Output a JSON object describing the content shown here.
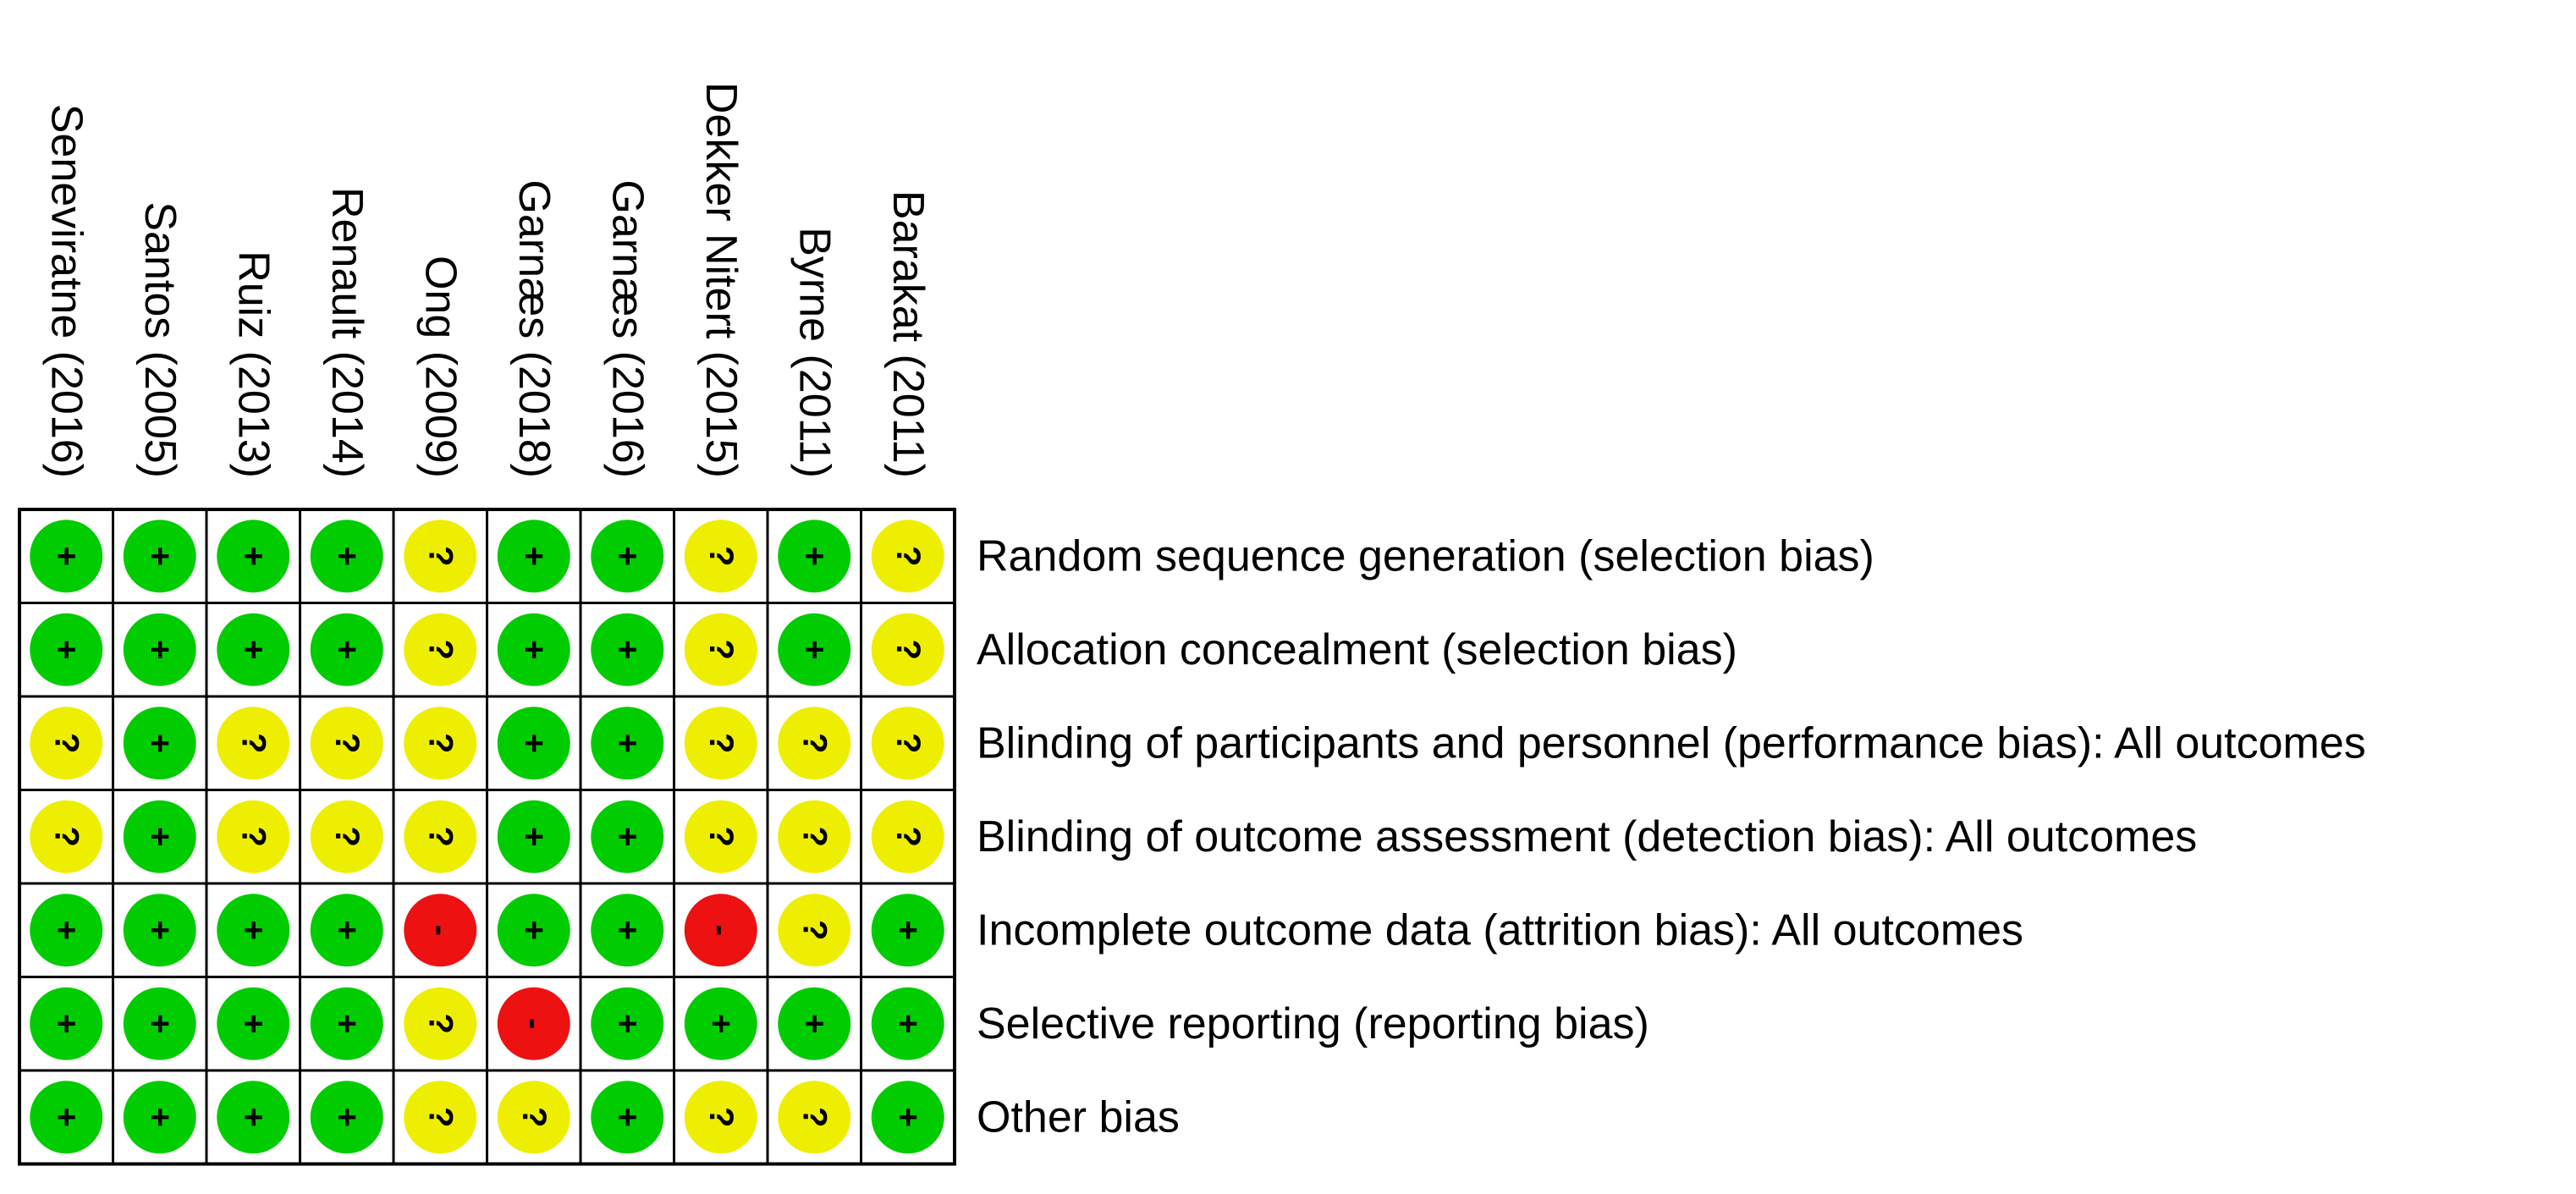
{
  "studies": [
    "Seneviratne (2016)",
    "Santos (2005)",
    "Ruiz (2013)",
    "Renault (2014)",
    "Ong (2009)",
    "Garnæs (2018)",
    "Garnæs (2016)",
    "Dekker Nitert (2015)",
    "Byrne (2011)",
    "Barakat (2011)"
  ],
  "judgment_colors": {
    "+": "#00cc00",
    "?": "#eeee00",
    "-": "#ee1111"
  },
  "rows": [
    {
      "domain": "Random sequence generation (selection bias)",
      "judgments": [
        "+",
        "+",
        "+",
        "+",
        "?",
        "+",
        "+",
        "?",
        "+",
        "?"
      ]
    },
    {
      "domain": "Allocation concealment (selection bias)",
      "judgments": [
        "+",
        "+",
        "+",
        "+",
        "?",
        "+",
        "+",
        "?",
        "+",
        "?"
      ]
    },
    {
      "domain": "Blinding of participants and personnel (performance bias): All outcomes",
      "judgments": [
        "?",
        "+",
        "?",
        "?",
        "?",
        "+",
        "+",
        "?",
        "?",
        "?"
      ]
    },
    {
      "domain": "Blinding of outcome assessment (detection bias): All outcomes",
      "judgments": [
        "?",
        "+",
        "?",
        "?",
        "?",
        "+",
        "+",
        "?",
        "?",
        "?"
      ]
    },
    {
      "domain": "Incomplete outcome data (attrition bias): All outcomes",
      "judgments": [
        "+",
        "+",
        "+",
        "+",
        "-",
        "+",
        "+",
        "-",
        "?",
        "+"
      ]
    },
    {
      "domain": "Selective reporting (reporting bias)",
      "judgments": [
        "+",
        "+",
        "+",
        "+",
        "?",
        "-",
        "+",
        "+",
        "+",
        "+"
      ]
    },
    {
      "domain": "Other bias",
      "judgments": [
        "+",
        "+",
        "+",
        "+",
        "?",
        "?",
        "+",
        "?",
        "?",
        "+"
      ]
    }
  ]
}
